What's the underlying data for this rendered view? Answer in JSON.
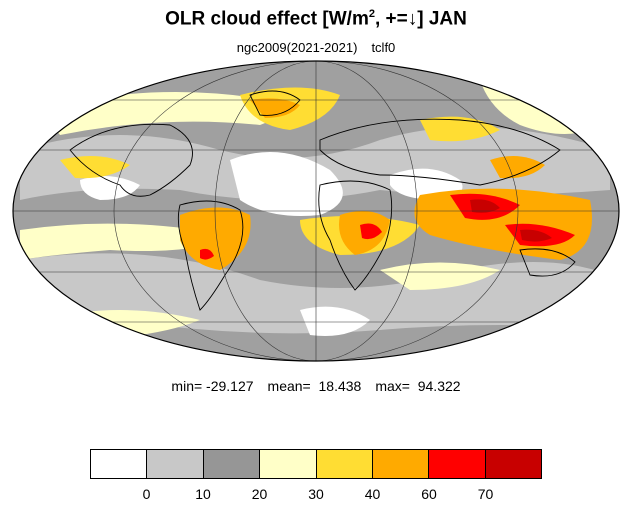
{
  "title": {
    "main": "OLR cloud effect [W/m",
    "sup": "2",
    "after": ", +=↓]  JAN"
  },
  "subtitle": {
    "case": "ngc2009(2021-2021)",
    "var": "tclf0"
  },
  "stats": {
    "min": "min= -29.127",
    "mean": "mean=  18.438",
    "max": "max=  94.322"
  },
  "colorbar": {
    "colors": [
      "#ffffff",
      "#c8c8c8",
      "#969696",
      "#ffffc8",
      "#ffdd33",
      "#ffaa00",
      "#ff0000",
      "#c80000"
    ],
    "labels": [
      "0",
      "10",
      "20",
      "30",
      "40",
      "60",
      "70"
    ]
  },
  "map": {
    "projection": "mollweide",
    "grid_lines": true,
    "coastlines": true
  }
}
